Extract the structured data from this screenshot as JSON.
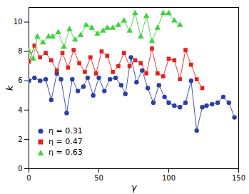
{
  "chart_data": {
    "type": "line",
    "x_label": "γ",
    "y_label": "k",
    "xlim": [
      0,
      150
    ],
    "xticks": [
      0,
      50,
      100,
      150
    ],
    "ylim": [
      0,
      11
    ],
    "yticks": [
      0,
      2,
      4,
      6,
      8,
      10
    ],
    "legend": "lower left",
    "series": [
      {
        "name": "η = 0.31",
        "color": "#2a3ea6",
        "marker": "circle",
        "x": [
          0,
          4,
          8,
          12,
          16,
          20,
          23,
          27,
          31,
          35,
          39,
          42,
          46,
          50,
          54,
          58,
          62,
          66,
          69,
          73,
          77,
          81,
          85,
          89,
          93,
          97,
          100,
          104,
          108,
          112,
          116,
          120,
          124,
          127,
          131,
          135,
          139,
          143,
          147
        ],
        "values": [
          6.0,
          6.2,
          6.0,
          6.1,
          4.7,
          6.5,
          6.1,
          3.8,
          6.1,
          5.3,
          5.6,
          6.2,
          5.0,
          6.2,
          5.3,
          6.1,
          6.2,
          5.7,
          5.1,
          7.6,
          5.9,
          6.7,
          5.5,
          4.5,
          5.7,
          4.9,
          4.5,
          4.3,
          4.2,
          4.5,
          6.0,
          2.6,
          4.2,
          4.3,
          4.4,
          4.5,
          4.9,
          4.5,
          3.5
        ]
      },
      {
        "name": "η = 0.47",
        "color": "#e3211c",
        "marker": "square",
        "x": [
          0,
          4,
          8,
          12,
          16,
          20,
          24,
          28,
          32,
          36,
          40,
          44,
          48,
          52,
          56,
          60,
          64,
          68,
          72,
          76,
          80,
          84,
          88,
          92,
          96,
          100,
          104,
          108,
          112,
          116,
          120,
          124
        ],
        "values": [
          7.3,
          8.4,
          7.6,
          7.9,
          7.4,
          6.7,
          7.9,
          6.9,
          8.1,
          7.2,
          6.6,
          7.6,
          6.5,
          8.0,
          7.7,
          6.6,
          7.0,
          7.9,
          7.0,
          7.4,
          7.2,
          6.5,
          8.2,
          6.5,
          6.3,
          7.5,
          7.4,
          6.1,
          8.1,
          7.1,
          6.1,
          5.5
        ]
      },
      {
        "name": "η = 0.63",
        "color": "#3fd13f",
        "marker": "triangle",
        "x": [
          0,
          3,
          6,
          10,
          14,
          17,
          21,
          25,
          29,
          33,
          37,
          41,
          45,
          49,
          53,
          56,
          60,
          64,
          68,
          72,
          76,
          80,
          84,
          88,
          92,
          96,
          100,
          104,
          108
        ],
        "values": [
          8.0,
          7.5,
          9.0,
          8.6,
          9.0,
          9.0,
          9.3,
          8.3,
          9.5,
          8.8,
          9.1,
          9.8,
          9.6,
          9.2,
          9.4,
          9.6,
          9.6,
          9.8,
          10.1,
          9.4,
          10.6,
          9.0,
          10.4,
          8.7,
          9.6,
          10.6,
          10.6,
          10.1,
          9.8
        ]
      }
    ]
  }
}
